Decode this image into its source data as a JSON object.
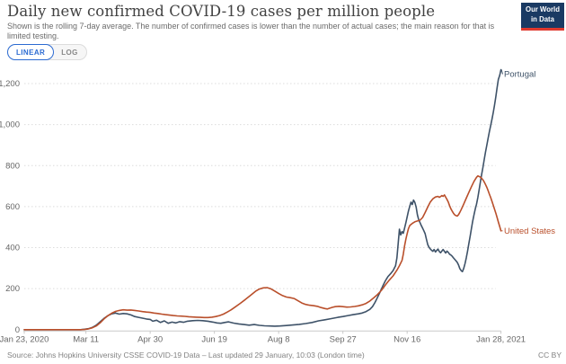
{
  "header": {
    "title": "Daily new confirmed COVID-19 cases per million people",
    "subtitle": "Shown is the rolling 7-day average. The number of confirmed cases is lower than the number of actual cases; the main reason for that is limited testing.",
    "logo": {
      "line1": "Our World",
      "line2": "in Data",
      "bg_color": "#1a3a63",
      "stripe_color": "#e0392e"
    }
  },
  "controls": {
    "linear_label": "LINEAR",
    "log_label": "LOG",
    "active": "LINEAR",
    "accent_color": "#2c6bd2"
  },
  "footer": {
    "source": "Source: Johns Hopkins University CSSE COVID-19 Data – Last updated 29 January, 10:03 (London time)",
    "license": "CC BY"
  },
  "chart_data": {
    "type": "line",
    "title": "Daily new confirmed COVID-19 cases per million people",
    "xlabel": "",
    "ylabel": "",
    "x_range_days": [
      0,
      371
    ],
    "x_ticks": [
      {
        "day": 0,
        "label": "Jan 23, 2020"
      },
      {
        "day": 48,
        "label": "Mar 11"
      },
      {
        "day": 98,
        "label": "Apr 30"
      },
      {
        "day": 148,
        "label": "Jun 19"
      },
      {
        "day": 198,
        "label": "Aug 8"
      },
      {
        "day": 248,
        "label": "Sep 27"
      },
      {
        "day": 298,
        "label": "Nov 16"
      },
      {
        "day": 371,
        "label": "Jan 28, 2021"
      }
    ],
    "y_ticks": [
      {
        "value": 0,
        "label": "0"
      },
      {
        "value": 200,
        "label": "200"
      },
      {
        "value": 400,
        "label": "400"
      },
      {
        "value": 600,
        "label": "600"
      },
      {
        "value": 800,
        "label": "800"
      },
      {
        "value": 1000,
        "label": "1,000"
      },
      {
        "value": 1200,
        "label": "1,200"
      }
    ],
    "ylim": [
      0,
      1280
    ],
    "grid": "dotted-horizontal",
    "legend_position": "line-end-labels",
    "series": [
      {
        "name": "Portugal",
        "color": "#3e5268",
        "points": [
          [
            0,
            0
          ],
          [
            14,
            0
          ],
          [
            28,
            0
          ],
          [
            40,
            0
          ],
          [
            44,
            0
          ],
          [
            47,
            2
          ],
          [
            50,
            5
          ],
          [
            53,
            11
          ],
          [
            56,
            22
          ],
          [
            59,
            38
          ],
          [
            62,
            55
          ],
          [
            65,
            68
          ],
          [
            68,
            77
          ],
          [
            71,
            81
          ],
          [
            74,
            76
          ],
          [
            77,
            79
          ],
          [
            80,
            77
          ],
          [
            83,
            72
          ],
          [
            86,
            64
          ],
          [
            89,
            60
          ],
          [
            92,
            56
          ],
          [
            95,
            52
          ],
          [
            98,
            50
          ],
          [
            100,
            41
          ],
          [
            103,
            46
          ],
          [
            106,
            35
          ],
          [
            109,
            43
          ],
          [
            112,
            31
          ],
          [
            115,
            37
          ],
          [
            118,
            33
          ],
          [
            121,
            39
          ],
          [
            124,
            36
          ],
          [
            127,
            41
          ],
          [
            131,
            44
          ],
          [
            135,
            45
          ],
          [
            139,
            44
          ],
          [
            143,
            41
          ],
          [
            147,
            37
          ],
          [
            150,
            33
          ],
          [
            153,
            31
          ],
          [
            156,
            35
          ],
          [
            159,
            38
          ],
          [
            163,
            32
          ],
          [
            167,
            28
          ],
          [
            171,
            25
          ],
          [
            175,
            22
          ],
          [
            179,
            25
          ],
          [
            183,
            21
          ],
          [
            187,
            19
          ],
          [
            191,
            18
          ],
          [
            195,
            17
          ],
          [
            199,
            18
          ],
          [
            204,
            20
          ],
          [
            209,
            23
          ],
          [
            214,
            26
          ],
          [
            219,
            30
          ],
          [
            224,
            35
          ],
          [
            229,
            43
          ],
          [
            234,
            48
          ],
          [
            239,
            54
          ],
          [
            244,
            60
          ],
          [
            248,
            64
          ],
          [
            252,
            69
          ],
          [
            256,
            73
          ],
          [
            260,
            77
          ],
          [
            263,
            81
          ],
          [
            266,
            88
          ],
          [
            269,
            99
          ],
          [
            271,
            112
          ],
          [
            273,
            133
          ],
          [
            275,
            158
          ],
          [
            277,
            185
          ],
          [
            279,
            212
          ],
          [
            281,
            238
          ],
          [
            283,
            258
          ],
          [
            285,
            272
          ],
          [
            287,
            288
          ],
          [
            289,
            312
          ],
          [
            290,
            350
          ],
          [
            291,
            420
          ],
          [
            292,
            490
          ],
          [
            293,
            462
          ],
          [
            294,
            478
          ],
          [
            295,
            470
          ],
          [
            296,
            495
          ],
          [
            297,
            522
          ],
          [
            298,
            550
          ],
          [
            299,
            578
          ],
          [
            300,
            602
          ],
          [
            301,
            622
          ],
          [
            302,
            610
          ],
          [
            303,
            632
          ],
          [
            304,
            620
          ],
          [
            305,
            598
          ],
          [
            306,
            560
          ],
          [
            307,
            535
          ],
          [
            308,
            522
          ],
          [
            309,
            508
          ],
          [
            310,
            495
          ],
          [
            311,
            482
          ],
          [
            312,
            468
          ],
          [
            313,
            442
          ],
          [
            314,
            415
          ],
          [
            315,
            402
          ],
          [
            316,
            394
          ],
          [
            317,
            387
          ],
          [
            318,
            382
          ],
          [
            319,
            391
          ],
          [
            320,
            379
          ],
          [
            321,
            386
          ],
          [
            322,
            393
          ],
          [
            323,
            381
          ],
          [
            324,
            375
          ],
          [
            325,
            383
          ],
          [
            326,
            391
          ],
          [
            327,
            382
          ],
          [
            328,
            374
          ],
          [
            329,
            383
          ],
          [
            330,
            377
          ],
          [
            331,
            368
          ],
          [
            332,
            364
          ],
          [
            333,
            358
          ],
          [
            334,
            350
          ],
          [
            335,
            343
          ],
          [
            336,
            336
          ],
          [
            337,
            328
          ],
          [
            338,
            315
          ],
          [
            339,
            298
          ],
          [
            340,
            288
          ],
          [
            341,
            283
          ],
          [
            342,
            298
          ],
          [
            343,
            322
          ],
          [
            344,
            350
          ],
          [
            345,
            382
          ],
          [
            346,
            418
          ],
          [
            347,
            455
          ],
          [
            348,
            492
          ],
          [
            349,
            528
          ],
          [
            350,
            560
          ],
          [
            351,
            588
          ],
          [
            352,
            612
          ],
          [
            353,
            645
          ],
          [
            354,
            682
          ],
          [
            355,
            720
          ],
          [
            356,
            757
          ],
          [
            357,
            793
          ],
          [
            358,
            830
          ],
          [
            359,
            866
          ],
          [
            360,
            900
          ],
          [
            361,
            933
          ],
          [
            362,
            965
          ],
          [
            363,
            996
          ],
          [
            364,
            1026
          ],
          [
            365,
            1058
          ],
          [
            366,
            1094
          ],
          [
            367,
            1136
          ],
          [
            368,
            1180
          ],
          [
            369,
            1220
          ],
          [
            370,
            1240
          ],
          [
            371,
            1268
          ]
        ]
      },
      {
        "name": "United States",
        "color": "#b94f2b",
        "points": [
          [
            0,
            0
          ],
          [
            14,
            0
          ],
          [
            28,
            0
          ],
          [
            40,
            0
          ],
          [
            44,
            0
          ],
          [
            47,
            1
          ],
          [
            50,
            4
          ],
          [
            53,
            9
          ],
          [
            56,
            18
          ],
          [
            59,
            33
          ],
          [
            62,
            52
          ],
          [
            65,
            68
          ],
          [
            68,
            80
          ],
          [
            71,
            89
          ],
          [
            74,
            94
          ],
          [
            77,
            97
          ],
          [
            80,
            95
          ],
          [
            83,
            96
          ],
          [
            86,
            94
          ],
          [
            89,
            91
          ],
          [
            92,
            88
          ],
          [
            95,
            86
          ],
          [
            98,
            84
          ],
          [
            101,
            81
          ],
          [
            104,
            79
          ],
          [
            107,
            76
          ],
          [
            110,
            73
          ],
          [
            113,
            71
          ],
          [
            116,
            69
          ],
          [
            119,
            67
          ],
          [
            122,
            66
          ],
          [
            125,
            65
          ],
          [
            128,
            63
          ],
          [
            131,
            62
          ],
          [
            134,
            61
          ],
          [
            137,
            60
          ],
          [
            140,
            59
          ],
          [
            143,
            59
          ],
          [
            146,
            61
          ],
          [
            149,
            64
          ],
          [
            152,
            69
          ],
          [
            155,
            76
          ],
          [
            158,
            86
          ],
          [
            161,
            97
          ],
          [
            164,
            110
          ],
          [
            168,
            128
          ],
          [
            172,
            147
          ],
          [
            176,
            167
          ],
          [
            180,
            187
          ],
          [
            183,
            198
          ],
          [
            186,
            204
          ],
          [
            189,
            205
          ],
          [
            192,
            199
          ],
          [
            195,
            188
          ],
          [
            198,
            176
          ],
          [
            201,
            166
          ],
          [
            204,
            159
          ],
          [
            207,
            156
          ],
          [
            210,
            152
          ],
          [
            213,
            141
          ],
          [
            216,
            130
          ],
          [
            219,
            123
          ],
          [
            222,
            119
          ],
          [
            225,
            117
          ],
          [
            228,
            114
          ],
          [
            231,
            108
          ],
          [
            234,
            103
          ],
          [
            236,
            101
          ],
          [
            238,
            105
          ],
          [
            240,
            109
          ],
          [
            242,
            112
          ],
          [
            245,
            114
          ],
          [
            248,
            112
          ],
          [
            251,
            110
          ],
          [
            254,
            111
          ],
          [
            257,
            113
          ],
          [
            260,
            116
          ],
          [
            263,
            121
          ],
          [
            266,
            128
          ],
          [
            269,
            140
          ],
          [
            272,
            155
          ],
          [
            275,
            172
          ],
          [
            278,
            192
          ],
          [
            281,
            218
          ],
          [
            284,
            241
          ],
          [
            287,
            262
          ],
          [
            290,
            290
          ],
          [
            292,
            312
          ],
          [
            294,
            338
          ],
          [
            295,
            368
          ],
          [
            296,
            408
          ],
          [
            297,
            442
          ],
          [
            298,
            468
          ],
          [
            299,
            492
          ],
          [
            300,
            508
          ],
          [
            302,
            518
          ],
          [
            304,
            526
          ],
          [
            306,
            530
          ],
          [
            308,
            534
          ],
          [
            310,
            547
          ],
          [
            312,
            571
          ],
          [
            314,
            598
          ],
          [
            316,
            622
          ],
          [
            318,
            638
          ],
          [
            320,
            647
          ],
          [
            322,
            650
          ],
          [
            323,
            645
          ],
          [
            324,
            649
          ],
          [
            325,
            654
          ],
          [
            326,
            650
          ],
          [
            327,
            657
          ],
          [
            328,
            646
          ],
          [
            329,
            635
          ],
          [
            330,
            622
          ],
          [
            331,
            605
          ],
          [
            332,
            590
          ],
          [
            333,
            578
          ],
          [
            334,
            568
          ],
          [
            335,
            560
          ],
          [
            336,
            556
          ],
          [
            337,
            554
          ],
          [
            338,
            561
          ],
          [
            339,
            572
          ],
          [
            340,
            585
          ],
          [
            342,
            612
          ],
          [
            344,
            641
          ],
          [
            346,
            669
          ],
          [
            348,
            697
          ],
          [
            350,
            723
          ],
          [
            352,
            743
          ],
          [
            353,
            750
          ],
          [
            354,
            747
          ],
          [
            355,
            744
          ],
          [
            356,
            738
          ],
          [
            357,
            730
          ],
          [
            358,
            720
          ],
          [
            359,
            708
          ],
          [
            360,
            694
          ],
          [
            361,
            678
          ],
          [
            362,
            661
          ],
          [
            363,
            644
          ],
          [
            364,
            626
          ],
          [
            365,
            607
          ],
          [
            366,
            588
          ],
          [
            367,
            568
          ],
          [
            368,
            547
          ],
          [
            369,
            525
          ],
          [
            370,
            503
          ],
          [
            371,
            482
          ]
        ]
      }
    ]
  }
}
